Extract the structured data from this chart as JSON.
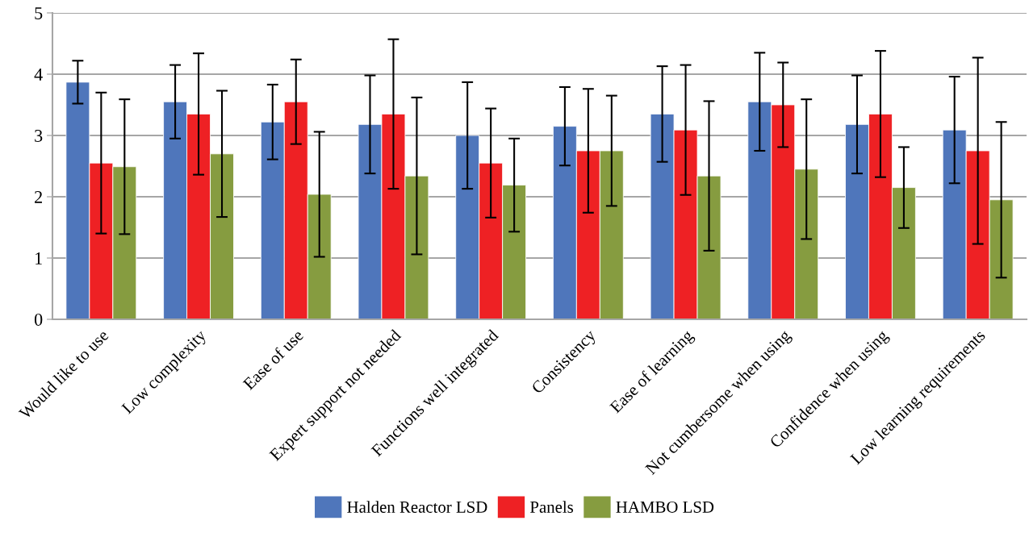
{
  "chart_data": {
    "type": "bar",
    "categories": [
      "Would like to use",
      "Low complexity",
      "Ease of use",
      "Expert support not needed",
      "Functions well integrated",
      "Consistency",
      "Ease of learning",
      "Not cumbersome when using",
      "Confidence when using",
      "Low learning requirements"
    ],
    "series": [
      {
        "name": "Halden Reactor LSD",
        "color": "#4f76bb",
        "values": [
          3.87,
          3.55,
          3.22,
          3.18,
          3.0,
          3.15,
          3.35,
          3.55,
          3.18,
          3.09
        ],
        "errors": [
          0.35,
          0.6,
          0.61,
          0.8,
          0.87,
          0.64,
          0.78,
          0.8,
          0.8,
          0.87
        ]
      },
      {
        "name": "Panels",
        "color": "#ee2124",
        "values": [
          2.55,
          3.35,
          3.55,
          3.35,
          2.55,
          2.75,
          3.09,
          3.5,
          3.35,
          2.75
        ],
        "errors": [
          1.15,
          0.99,
          0.69,
          1.22,
          0.89,
          1.01,
          1.06,
          0.69,
          1.03,
          1.52
        ]
      },
      {
        "name": "HAMBO LSD",
        "color": "#869c40",
        "values": [
          2.49,
          2.7,
          2.04,
          2.34,
          2.19,
          2.75,
          2.34,
          2.45,
          2.15,
          1.95
        ],
        "errors": [
          1.1,
          1.03,
          1.02,
          1.28,
          0.76,
          0.9,
          1.22,
          1.14,
          0.66,
          1.27
        ]
      }
    ],
    "ylim": [
      0,
      5
    ],
    "yticks": [
      0,
      1,
      2,
      3,
      4,
      5
    ],
    "grid": "y",
    "legend": "bottom"
  }
}
